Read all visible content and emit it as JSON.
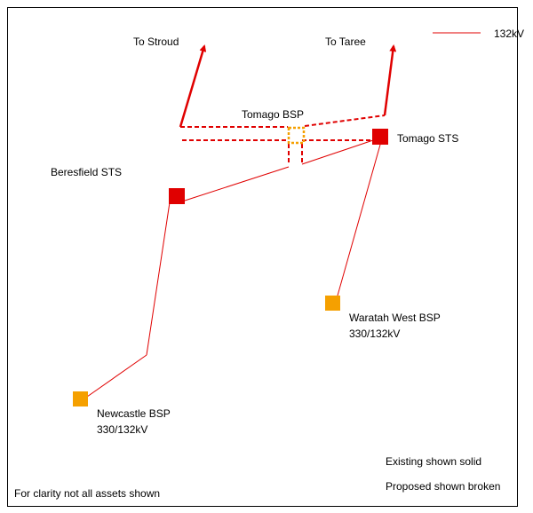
{
  "legend": {
    "label": "132kV"
  },
  "directions": [
    "To Stroud",
    "To Taree"
  ],
  "nodes": [
    {
      "label": "Tomago BSP"
    },
    {
      "label": "Tomago STS"
    },
    {
      "label": "Beresfield STS"
    },
    {
      "label": "Waratah West BSP",
      "sublabel": "330/132kV"
    },
    {
      "label": "Newcastle BSP",
      "sublabel": "330/132kV"
    }
  ],
  "notes": [
    "Existing shown solid",
    "Proposed shown broken",
    "For clarity not all assets shown"
  ]
}
